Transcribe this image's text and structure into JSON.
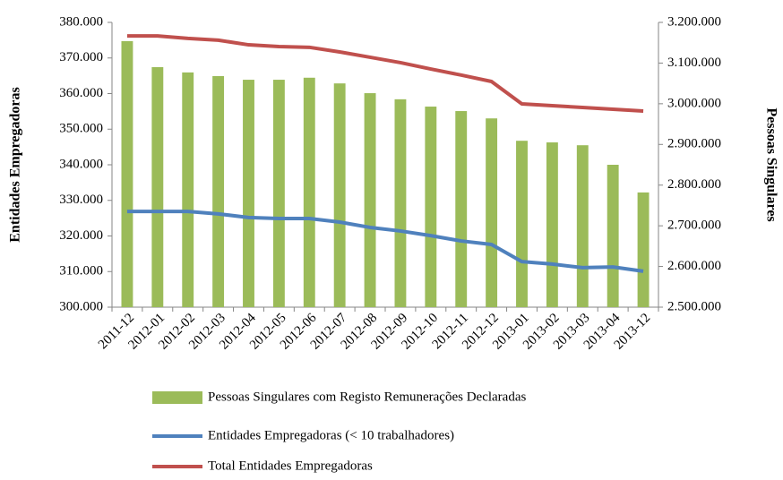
{
  "chart_data": {
    "type": "bar",
    "y_label": "Entidades Empregadoras",
    "y2_label": "Pessoas Singulares",
    "categories": [
      "2011-12",
      "2012-01",
      "2012-02",
      "2012-03",
      "2012-04",
      "2012-05",
      "2012-06",
      "2012-07",
      "2012-08",
      "2012-09",
      "2012-10",
      "2012-11",
      "2012-12",
      "2013-01",
      "2013-02",
      "2013-03",
      "2013-04",
      "2013-12"
    ],
    "series": [
      {
        "name": "Pessoas Singulares com Registo Remunerações Declaradas",
        "type": "bar",
        "axis": "y2",
        "color": "#9bbb59",
        "values": [
          3154000,
          3090000,
          3077000,
          3068000,
          3059000,
          3059000,
          3064000,
          3050000,
          3026000,
          3011000,
          2993000,
          2982000,
          2964000,
          2909000,
          2905000,
          2898000,
          2850000,
          2782000
        ]
      },
      {
        "name": "Entidades Empregadoras (< 10 trabalhadores)",
        "type": "line",
        "axis": "y",
        "color": "#4f81bd",
        "values": [
          326900,
          326900,
          326900,
          326200,
          325200,
          324900,
          324900,
          323900,
          322400,
          321400,
          320100,
          318600,
          317600,
          312800,
          312100,
          311100,
          311300,
          310100
        ]
      },
      {
        "name": "Total Entidades Empregadoras",
        "type": "line",
        "axis": "y",
        "color": "#c0504d",
        "values": [
          376200,
          376200,
          375500,
          375000,
          373700,
          373200,
          373000,
          371700,
          370200,
          368700,
          366900,
          365200,
          363400,
          357100,
          356600,
          356100,
          355600,
          355100
        ]
      }
    ],
    "ylim": [
      300000,
      380000
    ],
    "yticks": [
      {
        "value": 300000,
        "label": "300.000"
      },
      {
        "value": 310000,
        "label": "310.000"
      },
      {
        "value": 320000,
        "label": "320.000"
      },
      {
        "value": 330000,
        "label": "330.000"
      },
      {
        "value": 340000,
        "label": "340.000"
      },
      {
        "value": 350000,
        "label": "350.000"
      },
      {
        "value": 360000,
        "label": "360.000"
      },
      {
        "value": 370000,
        "label": "370.000"
      },
      {
        "value": 380000,
        "label": "380.000"
      }
    ],
    "y2lim": [
      2500000,
      3200000
    ],
    "y2ticks": [
      {
        "value": 2500000,
        "label": "2.500.000"
      },
      {
        "value": 2600000,
        "label": "2.600.000"
      },
      {
        "value": 2700000,
        "label": "2.700.000"
      },
      {
        "value": 2800000,
        "label": "2.800.000"
      },
      {
        "value": 2900000,
        "label": "2.900.000"
      },
      {
        "value": 3000000,
        "label": "3.000.000"
      },
      {
        "value": 3100000,
        "label": "3.100.000"
      },
      {
        "value": 3200000,
        "label": "3.200.000"
      }
    ],
    "legend": "bottom"
  }
}
